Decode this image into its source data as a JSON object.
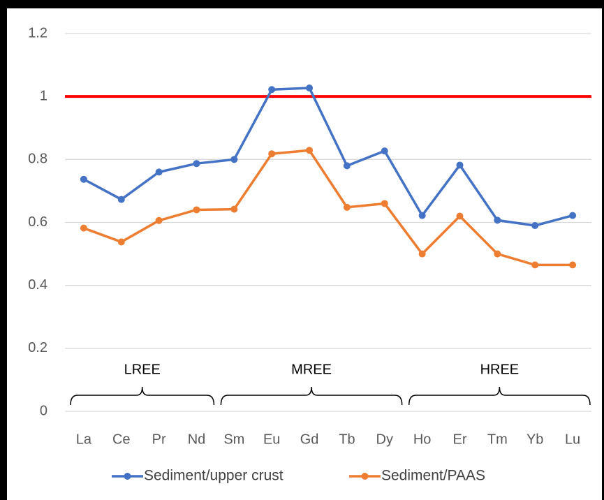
{
  "chart_data": {
    "type": "line",
    "categories": [
      "La",
      "Ce",
      "Pr",
      "Nd",
      "Sm",
      "Eu",
      "Gd",
      "Tb",
      "Dy",
      "Ho",
      "Er",
      "Tm",
      "Yb",
      "Lu"
    ],
    "series": [
      {
        "name": "Sediment/upper crust",
        "color": "#4472c4",
        "values": [
          0.737,
          0.673,
          0.76,
          0.787,
          0.8,
          1.022,
          1.027,
          0.78,
          0.827,
          0.622,
          0.782,
          0.607,
          0.59,
          0.622
        ]
      },
      {
        "name": "Sediment/PAAS",
        "color": "#ed7d31",
        "values": [
          0.582,
          0.538,
          0.606,
          0.64,
          0.642,
          0.818,
          0.829,
          0.648,
          0.66,
          0.5,
          0.62,
          0.5,
          0.465,
          0.465
        ]
      }
    ],
    "ylim": [
      0,
      1.2
    ],
    "yticks": [
      0,
      0.2,
      0.4,
      0.6,
      0.8,
      1,
      1.2
    ],
    "grid": true,
    "reference_line": {
      "value": 1,
      "color": "#ff0000"
    },
    "groups": [
      {
        "label": "LREE",
        "from": "La",
        "to": "Nd"
      },
      {
        "label": "MREE",
        "from": "Sm",
        "to": "Dy"
      },
      {
        "label": "HREE",
        "from": "Ho",
        "to": "Lu"
      }
    ],
    "legend": "bottom"
  }
}
